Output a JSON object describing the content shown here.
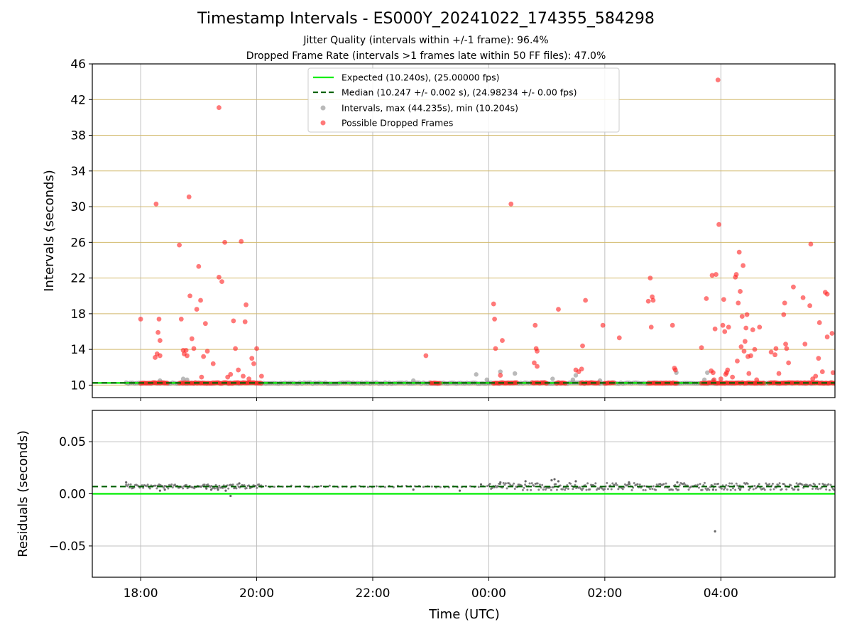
{
  "title": "Timestamp Intervals - ES000Y_20241022_174355_584298",
  "subtitle_1": "Jitter Quality (intervals within +/-1 frame): 96.4%",
  "subtitle_2": "Dropped Frame Rate (intervals >1 frames late within 50 FF files): 47.0%",
  "colors": {
    "expected": "#00ee00",
    "median": "#006400",
    "intervals": "#8c8c8c",
    "dropped": "#ff2020",
    "hgrid": "#d2b96c",
    "vgrid": "#c0c0c0",
    "residual_points": "#666666"
  },
  "chart_data": [
    {
      "type": "scatter",
      "ylabel": "Intervals (seconds)",
      "ylim": [
        8.6,
        46
      ],
      "yticks": [
        10,
        14,
        18,
        22,
        26,
        30,
        34,
        38,
        42,
        46
      ],
      "xlim": [
        "17:10",
        "05:58"
      ],
      "horizontal_grid": true,
      "legend_position": "top-center",
      "legend": [
        {
          "label": "Expected (10.240s), (25.00000 fps)",
          "style": "solid-line"
        },
        {
          "label": "Median (10.247 +/- 0.002 s), (24.98234 +/- 0.00 fps)",
          "style": "dashed-line"
        },
        {
          "label": "Intervals, max (44.235s), min (10.204s)",
          "style": "grey-dot"
        },
        {
          "label": "Possible Dropped Frames",
          "style": "red-dot"
        }
      ],
      "expected_value": 10.24,
      "median_value": 10.247,
      "series": [
        {
          "name": "Intervals, max (44.235s), min (10.204s)",
          "segments": [
            [
              "17:45",
              "18:00"
            ],
            [
              "18:00",
              "20:05"
            ],
            [
              "20:05",
              "23:00"
            ],
            [
              "23:00",
              "00:00"
            ],
            [
              "00:00",
              "04:45"
            ],
            [
              "04:45",
              "05:58"
            ]
          ],
          "segment_value": 10.22,
          "points": [
            [
              "18:20",
              10.5
            ],
            [
              "18:44",
              10.7
            ],
            [
              "18:48",
              10.6
            ],
            [
              "22:42",
              10.5
            ],
            [
              "23:47",
              11.2
            ],
            [
              "23:58",
              10.6
            ],
            [
              "00:12",
              11.5
            ],
            [
              "00:27",
              11.3
            ],
            [
              "01:06",
              10.7
            ],
            [
              "01:27",
              10.6
            ],
            [
              "01:30",
              11.1
            ],
            [
              "01:55",
              10.5
            ],
            [
              "03:14",
              11.4
            ],
            [
              "03:43",
              10.6
            ],
            [
              "03:46",
              11.4
            ],
            [
              "03:52",
              10.5
            ]
          ]
        },
        {
          "name": "Possible Dropped Frames",
          "dense_bands": [
            [
              "18:00",
              "18:28"
            ],
            [
              "18:40",
              "20:05"
            ],
            [
              "23:00",
              "23:10"
            ],
            [
              "00:05",
              "00:30"
            ],
            [
              "00:45",
              "01:00"
            ],
            [
              "01:10",
              "01:20"
            ],
            [
              "01:35",
              "01:55"
            ],
            [
              "02:00",
              "02:10"
            ],
            [
              "02:45",
              "03:15"
            ],
            [
              "03:40",
              "04:45"
            ],
            [
              "04:50",
              "05:58"
            ]
          ],
          "band_value": 10.24,
          "points": [
            [
              "18:00",
              17.4
            ],
            [
              "18:15",
              13.1
            ],
            [
              "18:17",
              13.5
            ],
            [
              "18:20",
              13.3
            ],
            [
              "18:18",
              15.9
            ],
            [
              "18:19",
              17.4
            ],
            [
              "18:20",
              15.0
            ],
            [
              "18:16",
              30.3
            ],
            [
              "18:40",
              25.7
            ],
            [
              "18:42",
              17.4
            ],
            [
              "18:44",
              13.9
            ],
            [
              "18:45",
              13.5
            ],
            [
              "18:47",
              13.9
            ],
            [
              "18:48",
              13.3
            ],
            [
              "18:50",
              31.1
            ],
            [
              "18:51",
              20.0
            ],
            [
              "18:53",
              15.2
            ],
            [
              "18:55",
              14.1
            ],
            [
              "18:58",
              18.5
            ],
            [
              "19:00",
              23.3
            ],
            [
              "19:02",
              19.5
            ],
            [
              "19:03",
              10.9
            ],
            [
              "19:05",
              13.2
            ],
            [
              "19:07",
              16.9
            ],
            [
              "19:09",
              13.8
            ],
            [
              "19:15",
              12.4
            ],
            [
              "19:21",
              41.1
            ],
            [
              "19:21",
              22.1
            ],
            [
              "19:24",
              21.6
            ],
            [
              "19:27",
              26.0
            ],
            [
              "19:30",
              10.9
            ],
            [
              "19:33",
              11.2
            ],
            [
              "19:36",
              17.2
            ],
            [
              "19:38",
              14.1
            ],
            [
              "19:41",
              11.7
            ],
            [
              "19:44",
              26.1
            ],
            [
              "19:46",
              11.0
            ],
            [
              "19:48",
              17.1
            ],
            [
              "19:49",
              19.0
            ],
            [
              "19:52",
              10.7
            ],
            [
              "19:55",
              13.0
            ],
            [
              "19:57",
              12.4
            ],
            [
              "20:00",
              14.1
            ],
            [
              "20:05",
              11.0
            ],
            [
              "22:55",
              13.3
            ],
            [
              "00:05",
              19.1
            ],
            [
              "00:06",
              17.4
            ],
            [
              "00:07",
              14.1
            ],
            [
              "00:12",
              11.1
            ],
            [
              "00:14",
              15.0
            ],
            [
              "00:23",
              30.3
            ],
            [
              "00:48",
              16.7
            ],
            [
              "00:49",
              14.1
            ],
            [
              "00:50",
              13.8
            ],
            [
              "00:47",
              12.5
            ],
            [
              "00:50",
              12.1
            ],
            [
              "01:12",
              18.5
            ],
            [
              "01:30",
              11.7
            ],
            [
              "01:33",
              11.5
            ],
            [
              "01:36",
              11.8
            ],
            [
              "01:37",
              14.4
            ],
            [
              "01:40",
              19.5
            ],
            [
              "01:58",
              16.7
            ],
            [
              "02:15",
              15.3
            ],
            [
              "02:45",
              19.4
            ],
            [
              "02:47",
              22.0
            ],
            [
              "02:48",
              16.5
            ],
            [
              "02:49",
              19.9
            ],
            [
              "02:50",
              19.5
            ],
            [
              "03:10",
              16.7
            ],
            [
              "03:12",
              11.9
            ],
            [
              "03:13",
              11.7
            ],
            [
              "03:40",
              14.2
            ],
            [
              "03:45",
              19.7
            ],
            [
              "03:50",
              11.6
            ],
            [
              "03:51",
              22.3
            ],
            [
              "03:52",
              11.4
            ],
            [
              "03:53",
              10.6
            ],
            [
              "03:54",
              16.3
            ],
            [
              "03:55",
              22.4
            ],
            [
              "03:57",
              44.2
            ],
            [
              "03:58",
              28.0
            ],
            [
              "04:00",
              10.7
            ],
            [
              "04:02",
              16.7
            ],
            [
              "04:03",
              19.6
            ],
            [
              "04:04",
              16.0
            ],
            [
              "04:05",
              11.2
            ],
            [
              "04:06",
              11.4
            ],
            [
              "04:07",
              11.7
            ],
            [
              "04:08",
              16.5
            ],
            [
              "04:12",
              10.9
            ],
            [
              "04:15",
              22.1
            ],
            [
              "04:16",
              22.4
            ],
            [
              "04:17",
              12.7
            ],
            [
              "04:18",
              19.2
            ],
            [
              "04:19",
              24.9
            ],
            [
              "04:20",
              20.5
            ],
            [
              "04:21",
              14.3
            ],
            [
              "04:22",
              17.7
            ],
            [
              "04:23",
              23.4
            ],
            [
              "04:24",
              13.8
            ],
            [
              "04:25",
              14.9
            ],
            [
              "04:26",
              16.4
            ],
            [
              "04:27",
              17.9
            ],
            [
              "04:28",
              13.2
            ],
            [
              "04:29",
              11.3
            ],
            [
              "04:31",
              13.3
            ],
            [
              "04:33",
              16.2
            ],
            [
              "04:35",
              14.0
            ],
            [
              "04:37",
              10.6
            ],
            [
              "04:40",
              16.5
            ],
            [
              "04:52",
              13.7
            ],
            [
              "04:56",
              13.4
            ],
            [
              "04:57",
              14.1
            ],
            [
              "05:00",
              11.3
            ],
            [
              "05:05",
              17.9
            ],
            [
              "05:06",
              19.2
            ],
            [
              "05:07",
              14.6
            ],
            [
              "05:08",
              14.1
            ],
            [
              "05:10",
              12.5
            ],
            [
              "05:15",
              21.0
            ],
            [
              "05:25",
              19.8
            ],
            [
              "05:27",
              14.6
            ],
            [
              "05:32",
              18.9
            ],
            [
              "05:33",
              25.8
            ],
            [
              "05:35",
              10.7
            ],
            [
              "05:38",
              11.0
            ],
            [
              "05:41",
              13.0
            ],
            [
              "05:42",
              17.0
            ],
            [
              "05:45",
              11.5
            ],
            [
              "05:48",
              20.4
            ],
            [
              "05:50",
              20.2
            ],
            [
              "05:50",
              15.4
            ],
            [
              "05:55",
              15.8
            ],
            [
              "05:56",
              11.4
            ]
          ]
        }
      ]
    },
    {
      "type": "scatter",
      "ylabel": "Residuals (seconds)",
      "xlabel": "Time (UTC)",
      "ylim": [
        -0.08,
        0.08
      ],
      "yticks": [
        -0.05,
        0.0,
        0.05
      ],
      "ytick_labels": [
        "−0.05",
        "0.00",
        "0.05"
      ],
      "xticks": [
        "18:00",
        "20:00",
        "22:00",
        "00:00",
        "02:00",
        "04:00"
      ],
      "xlim": [
        "17:10",
        "05:58"
      ],
      "grid": true,
      "expected_residual": 0.0,
      "median_residual": 0.007,
      "series": [
        {
          "name": "Residuals",
          "dense_bands": [
            [
              "17:45",
              "20:05"
            ],
            [
              "20:05",
              "00:00"
            ],
            [
              "00:00",
              "05:58"
            ]
          ],
          "band_value": 0.007,
          "points": [
            [
              "17:45",
              0.011
            ],
            [
              "18:20",
              0.003
            ],
            [
              "18:25",
              0.004
            ],
            [
              "19:08",
              0.005
            ],
            [
              "19:13",
              0.004
            ],
            [
              "19:20",
              0.004
            ],
            [
              "19:28",
              0.003
            ],
            [
              "19:33",
              -0.002
            ],
            [
              "19:42",
              0.01
            ],
            [
              "22:42",
              0.004
            ],
            [
              "23:30",
              0.003
            ],
            [
              "23:52",
              0.009
            ],
            [
              "00:12",
              0.011
            ],
            [
              "00:38",
              0.012
            ],
            [
              "01:05",
              0.013
            ],
            [
              "01:08",
              0.014
            ],
            [
              "01:12",
              0.012
            ],
            [
              "01:30",
              0.012
            ],
            [
              "02:25",
              0.011
            ],
            [
              "03:15",
              0.011
            ],
            [
              "03:52",
              0.004
            ],
            [
              "03:54",
              -0.036
            ],
            [
              "04:20",
              0.004
            ],
            [
              "05:20",
              0.004
            ]
          ]
        }
      ]
    }
  ]
}
